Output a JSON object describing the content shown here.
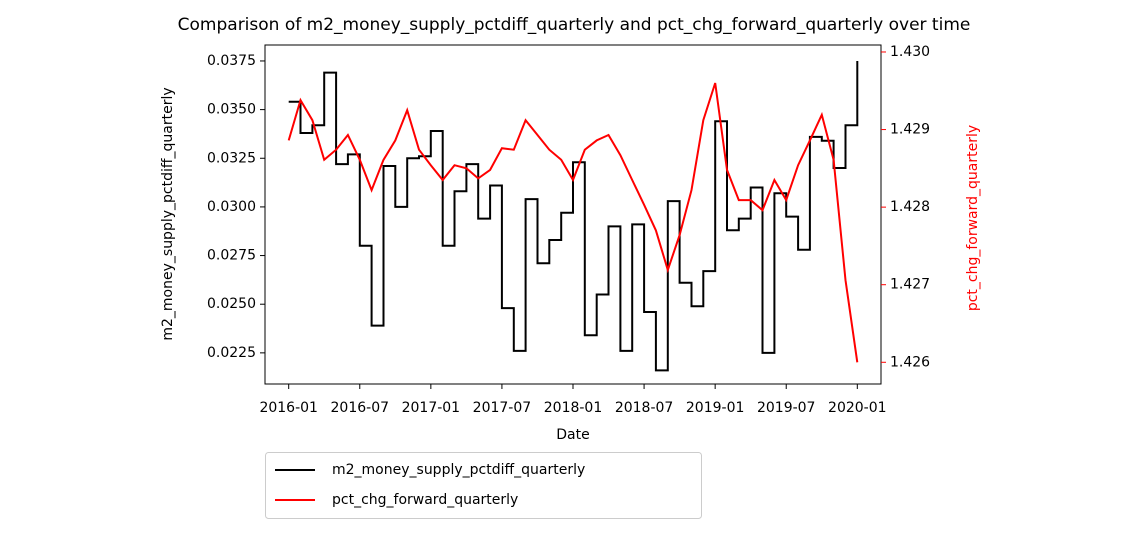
{
  "chart_data": {
    "type": "line",
    "title": "Comparison of m2_money_supply_pctdiff_quarterly and pct_chg_forward_quarterly over time",
    "x_label": "Date",
    "y_label": "m2_money_supply_pctdiff_quarterly",
    "y2_label": "pct_chg_forward_quarterly",
    "x": [
      "2016-01",
      "2016-02",
      "2016-03",
      "2016-04",
      "2016-05",
      "2016-06",
      "2016-07",
      "2016-08",
      "2016-09",
      "2016-10",
      "2016-11",
      "2016-12",
      "2017-01",
      "2017-02",
      "2017-03",
      "2017-04",
      "2017-05",
      "2017-06",
      "2017-07",
      "2017-08",
      "2017-09",
      "2017-10",
      "2017-11",
      "2017-12",
      "2018-01",
      "2018-02",
      "2018-03",
      "2018-04",
      "2018-05",
      "2018-06",
      "2018-07",
      "2018-08",
      "2018-09",
      "2018-10",
      "2018-11",
      "2018-12",
      "2019-01",
      "2019-02",
      "2019-03",
      "2019-04",
      "2019-05",
      "2019-06",
      "2019-07",
      "2019-08",
      "2019-09",
      "2019-10",
      "2019-11",
      "2019-12",
      "2020-01"
    ],
    "series": [
      {
        "name": "m2_money_supply_pctdiff_quarterly",
        "color": "#000000",
        "step": "post",
        "values": [
          0.0354,
          0.0338,
          0.0342,
          0.0369,
          0.0322,
          0.0327,
          0.028,
          0.0239,
          0.0321,
          0.03,
          0.0325,
          0.0326,
          0.0339,
          0.028,
          0.0308,
          0.0322,
          0.0294,
          0.0311,
          0.0248,
          0.0226,
          0.0304,
          0.0271,
          0.0283,
          0.0297,
          0.0323,
          0.0234,
          0.0255,
          0.029,
          0.0226,
          0.0291,
          0.0246,
          0.0216,
          0.0303,
          0.0261,
          0.0249,
          0.0267,
          0.0344,
          0.0288,
          0.0294,
          0.031,
          0.0225,
          0.0307,
          0.0295,
          0.0278,
          0.0336,
          0.0334,
          0.032,
          0.0342,
          0.0375
        ]
      },
      {
        "name": "pct_chg_forward_quarterly",
        "color": "#ff0000",
        "axis": "y2",
        "values": [
          1.42886,
          1.42938,
          1.42912,
          1.42861,
          1.42874,
          1.42893,
          1.42861,
          1.42822,
          1.42861,
          1.42886,
          1.42925,
          1.42874,
          1.42854,
          1.42835,
          1.42854,
          1.4285,
          1.42837,
          1.42848,
          1.42876,
          1.42874,
          1.42912,
          1.42893,
          1.42874,
          1.42861,
          1.42835,
          1.42874,
          1.42886,
          1.42893,
          1.42867,
          1.42835,
          1.42803,
          1.4277,
          1.42719,
          1.42764,
          1.42822,
          1.42912,
          1.4296,
          1.42848,
          1.42809,
          1.42809,
          1.42796,
          1.42835,
          1.42809,
          1.42854,
          1.42886,
          1.42919,
          1.42861,
          1.42706,
          1.426
        ]
      }
    ],
    "xlim": [
      "2015-11",
      "2020-03"
    ],
    "xticks": [
      "2016-01",
      "2016-07",
      "2017-01",
      "2017-07",
      "2018-01",
      "2018-07",
      "2019-01",
      "2019-07",
      "2020-01"
    ],
    "ylim": [
      0.0209,
      0.03832
    ],
    "yticks": [
      0.0225,
      {
        "value": 0.025,
        "label": "0.0250"
      },
      0.0275,
      {
        "value": 0.03,
        "label": "0.0300"
      },
      0.0325,
      {
        "value": 0.035,
        "label": "0.0350"
      },
      0.0375
    ],
    "y2lim": [
      1.42572,
      1.43009
    ],
    "y2ticks": [
      1.426,
      1.427,
      1.428,
      1.429,
      {
        "value": 1.43,
        "label": "1.430"
      }
    ],
    "legend": "below"
  }
}
